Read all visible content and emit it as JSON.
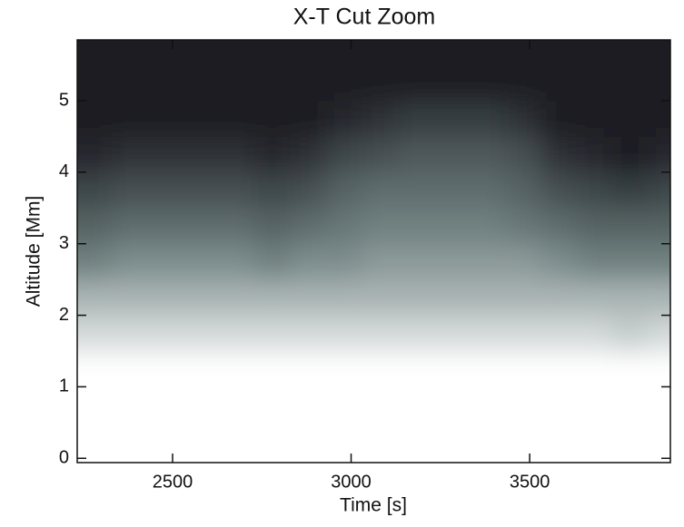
{
  "chart_data": {
    "type": "heatmap",
    "title": "X-T Cut Zoom",
    "xlabel": "Time [s]",
    "ylabel": "Altitude [Mm]",
    "x": [
      2280,
      2380,
      2480,
      2580,
      2680,
      2780,
      2880,
      2980,
      3080,
      3180,
      3280,
      3380,
      3480,
      3580,
      3680,
      3780,
      3880
    ],
    "y": [
      0.25,
      0.75,
      1.25,
      1.75,
      2.25,
      2.75,
      3.25,
      3.75,
      4.25,
      4.75,
      5.25,
      5.75
    ],
    "z": [
      [
        1,
        1,
        1,
        1,
        1,
        1,
        1,
        1,
        1,
        1,
        1,
        1,
        1,
        1,
        1,
        1,
        1
      ],
      [
        1,
        1,
        1,
        1,
        1,
        1,
        1,
        1,
        1,
        1,
        1,
        1,
        1,
        1,
        1,
        1,
        1
      ],
      [
        1,
        1,
        1,
        1,
        1,
        1,
        1,
        1,
        1,
        1,
        1,
        1,
        1,
        1,
        1,
        1,
        1
      ],
      [
        0.85,
        0.85,
        0.85,
        0.85,
        0.85,
        0.85,
        0.85,
        0.85,
        0.85,
        0.85,
        0.85,
        0.85,
        0.85,
        0.85,
        0.85,
        0.8,
        0.85
      ],
      [
        0.7,
        0.7,
        0.7,
        0.7,
        0.7,
        0.7,
        0.7,
        0.7,
        0.7,
        0.7,
        0.7,
        0.7,
        0.7,
        0.7,
        0.7,
        0.7,
        0.7
      ],
      [
        0.5,
        0.55,
        0.55,
        0.55,
        0.55,
        0.5,
        0.55,
        0.55,
        0.6,
        0.6,
        0.6,
        0.6,
        0.6,
        0.55,
        0.5,
        0.5,
        0.5
      ],
      [
        0.35,
        0.4,
        0.4,
        0.4,
        0.4,
        0.35,
        0.4,
        0.45,
        0.5,
        0.5,
        0.5,
        0.5,
        0.45,
        0.4,
        0.35,
        0.35,
        0.35
      ],
      [
        0.2,
        0.25,
        0.25,
        0.25,
        0.25,
        0.2,
        0.25,
        0.35,
        0.4,
        0.4,
        0.4,
        0.4,
        0.35,
        0.25,
        0.2,
        0.15,
        0.2
      ],
      [
        0.05,
        0.1,
        0.1,
        0.1,
        0.1,
        0.05,
        0.1,
        0.2,
        0.25,
        0.3,
        0.3,
        0.3,
        0.25,
        0.1,
        0.05,
        0,
        0.05
      ],
      [
        0,
        0,
        0,
        0,
        0,
        0,
        0,
        0.05,
        0.1,
        0.15,
        0.15,
        0.15,
        0.1,
        0,
        0,
        0,
        0
      ],
      [
        0,
        0,
        0,
        0,
        0,
        0,
        0,
        0,
        0,
        0,
        0,
        0,
        0,
        0,
        0,
        0,
        0
      ],
      [
        0,
        0,
        0,
        0,
        0,
        0,
        0,
        0,
        0,
        0,
        0,
        0,
        0,
        0,
        0,
        0,
        0
      ]
    ],
    "colormap": [
      "#1e1e24",
      "#6f8180",
      "#ffffff"
    ],
    "xlim": [
      2233,
      3894
    ],
    "ylim": [
      -0.06,
      5.85
    ],
    "xticks": [
      2500,
      3000,
      3500
    ],
    "yticks": [
      0,
      1,
      2,
      3,
      4,
      5
    ]
  }
}
